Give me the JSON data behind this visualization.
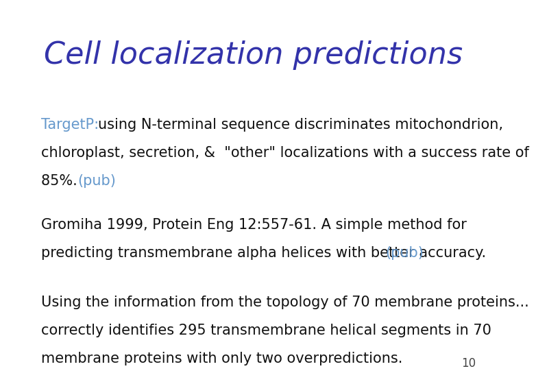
{
  "title": "Cell localization predictions",
  "title_color": "#3333aa",
  "title_fontsize": 32,
  "background_color": "#ffffff",
  "paragraph1_link": "TargetP:",
  "link_color": "#6699cc",
  "paragraph2_text_line1": "Gromiha 1999, Protein Eng 12:557-61. A simple method for",
  "paragraph2_text_line2": "predicting transmembrane alpha helices with better accuracy. ",
  "paragraph2_pub": "(pub)",
  "paragraph3_text_line1": "Using the information from the topology of 70 membrane proteins...",
  "paragraph3_text_line2": "correctly identifies 295 transmembrane helical segments in 70",
  "paragraph3_text_line3": "membrane proteins with only two overpredictions.",
  "body_fontsize": 15,
  "body_color": "#111111",
  "page_number": "10",
  "page_number_color": "#444444",
  "page_number_fontsize": 12
}
